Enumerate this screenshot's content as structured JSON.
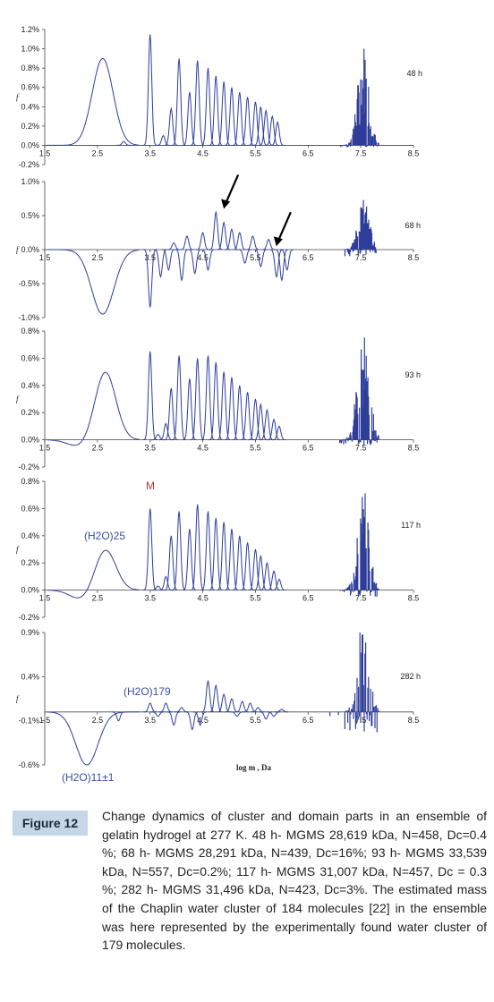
{
  "chart_data": [
    {
      "type": "line",
      "panel_label": "48 h",
      "ylabel": "f",
      "xlim": [
        1.5,
        8.5
      ],
      "ylim": [
        -0.2,
        1.2
      ],
      "x_ticks": [
        "1.5",
        "2.5",
        "3.5",
        "4.5",
        "5.5",
        "6.5",
        "7.5",
        "8.5"
      ],
      "y_ticks": [
        "-0.2%",
        "0.0%",
        "0.2%",
        "0.4%",
        "0.6%",
        "0.8%",
        "1.0%",
        "1.2%"
      ],
      "y_tick_values": [
        -0.2,
        0,
        0.2,
        0.4,
        0.6,
        0.8,
        1.0,
        1.2
      ],
      "series": [
        {
          "hump_center": 2.6,
          "hump_height": 0.9,
          "dip_center": null,
          "dip_depth": 0,
          "peaks": [
            [
              3.0,
              0.04
            ],
            [
              3.5,
              1.15
            ],
            [
              3.75,
              0.1
            ],
            [
              3.9,
              0.38
            ],
            [
              4.05,
              0.9
            ],
            [
              4.25,
              0.55
            ],
            [
              4.4,
              0.88
            ],
            [
              4.6,
              0.8
            ],
            [
              4.75,
              0.72
            ],
            [
              4.9,
              0.66
            ],
            [
              5.05,
              0.6
            ],
            [
              5.2,
              0.55
            ],
            [
              5.35,
              0.5
            ],
            [
              5.5,
              0.45
            ],
            [
              5.6,
              0.4
            ],
            [
              5.7,
              0.36
            ],
            [
              5.82,
              0.3
            ],
            [
              5.92,
              0.24
            ]
          ],
          "cluster": {
            "from": 7.1,
            "to": 7.85,
            "max": 1.0,
            "min": -0.02
          }
        }
      ]
    },
    {
      "type": "line",
      "panel_label": "68 h",
      "ylabel": "f",
      "xlim": [
        1.5,
        8.5
      ],
      "ylim": [
        -1.0,
        1.0
      ],
      "x_ticks": [
        "1.5",
        "2.5",
        "3.5",
        "4.5",
        "5.5",
        "6.5",
        "7.5",
        "8.5"
      ],
      "y_ticks": [
        "-1.0%",
        "-0.5%",
        "0.0%",
        "0.5%",
        "1.0%"
      ],
      "y_tick_values": [
        -1.0,
        -0.5,
        0,
        0.5,
        1.0
      ],
      "arrows": [
        4.9,
        6.0
      ],
      "series": [
        {
          "hump_center": null,
          "hump_height": 0,
          "dip_center": 2.6,
          "dip_depth": -0.95,
          "peaks": [
            [
              3.5,
              -0.85
            ],
            [
              3.7,
              -0.4
            ],
            [
              3.85,
              -0.3
            ],
            [
              3.95,
              0.1
            ],
            [
              4.1,
              -0.45
            ],
            [
              4.2,
              0.2
            ],
            [
              4.35,
              -0.35
            ],
            [
              4.5,
              0.25
            ],
            [
              4.6,
              -0.3
            ],
            [
              4.75,
              0.55
            ],
            [
              4.9,
              0.4
            ],
            [
              5.05,
              0.3
            ],
            [
              5.2,
              0.25
            ],
            [
              5.3,
              -0.2
            ],
            [
              5.45,
              0.2
            ],
            [
              5.6,
              -0.25
            ],
            [
              5.75,
              0.15
            ],
            [
              5.9,
              -0.4
            ],
            [
              6.0,
              -0.45
            ],
            [
              6.1,
              -0.3
            ]
          ],
          "cluster": {
            "from": 7.1,
            "to": 7.8,
            "max": 0.75,
            "min": -0.1
          }
        }
      ]
    },
    {
      "type": "line",
      "panel_label": "93 h",
      "ylabel": "f",
      "xlim": [
        1.5,
        8.5
      ],
      "ylim": [
        -0.2,
        0.8
      ],
      "x_ticks": [
        "1.5",
        "2.5",
        "3.5",
        "4.5",
        "5.5",
        "6.5",
        "7.5",
        "8.5"
      ],
      "y_ticks": [
        "-0.2%",
        "0.0%",
        "0.2%",
        "0.4%",
        "0.6%",
        "0.8%"
      ],
      "y_tick_values": [
        -0.2,
        0,
        0.2,
        0.4,
        0.6,
        0.8
      ],
      "series": [
        {
          "hump_center": 2.65,
          "hump_height": 0.5,
          "dip_center": 2.15,
          "dip_depth": -0.05,
          "peaks": [
            [
              3.5,
              0.65
            ],
            [
              3.65,
              0.04
            ],
            [
              3.8,
              0.12
            ],
            [
              3.9,
              0.38
            ],
            [
              4.05,
              0.62
            ],
            [
              4.25,
              0.45
            ],
            [
              4.4,
              0.6
            ],
            [
              4.6,
              0.62
            ],
            [
              4.75,
              0.57
            ],
            [
              4.9,
              0.5
            ],
            [
              5.05,
              0.46
            ],
            [
              5.2,
              0.4
            ],
            [
              5.35,
              0.35
            ],
            [
              5.5,
              0.3
            ],
            [
              5.6,
              0.26
            ],
            [
              5.72,
              0.22
            ],
            [
              5.85,
              0.15
            ],
            [
              5.95,
              0.1
            ]
          ],
          "cluster": {
            "from": 7.1,
            "to": 7.85,
            "max": 0.9,
            "min": -0.04
          }
        }
      ]
    },
    {
      "type": "line",
      "panel_label": "117 h",
      "ylabel": "f",
      "xlim": [
        1.5,
        8.5
      ],
      "ylim": [
        -0.2,
        0.8
      ],
      "x_ticks": [
        "1.5",
        "2.5",
        "3.5",
        "4.5",
        "5.5",
        "6.5",
        "7.5",
        "8.5"
      ],
      "y_ticks": [
        "-0.2%",
        "0.0%",
        "0.2%",
        "0.4%",
        "0.6%",
        "0.8%"
      ],
      "y_tick_values": [
        -0.2,
        0,
        0.2,
        0.4,
        0.6,
        0.8
      ],
      "series": [
        {
          "hump_center": 2.65,
          "hump_height": 0.3,
          "dip_center": 2.2,
          "dip_depth": -0.07,
          "peaks": [
            [
              3.5,
              0.6
            ],
            [
              3.65,
              0.03
            ],
            [
              3.8,
              0.1
            ],
            [
              3.9,
              0.4
            ],
            [
              4.05,
              0.58
            ],
            [
              4.25,
              0.45
            ],
            [
              4.4,
              0.63
            ],
            [
              4.6,
              0.58
            ],
            [
              4.75,
              0.53
            ],
            [
              4.9,
              0.5
            ],
            [
              5.05,
              0.45
            ],
            [
              5.2,
              0.4
            ],
            [
              5.35,
              0.35
            ],
            [
              5.5,
              0.3
            ],
            [
              5.6,
              0.25
            ],
            [
              5.72,
              0.2
            ],
            [
              5.85,
              0.14
            ],
            [
              5.95,
              0.08
            ]
          ],
          "cluster": {
            "from": 7.1,
            "to": 7.85,
            "max": 0.75,
            "min": -0.05
          }
        }
      ]
    },
    {
      "type": "line",
      "panel_label": "282 h",
      "ylabel": "f",
      "xlabel": "log m , Da",
      "xlim": [
        1.5,
        8.5
      ],
      "ylim": [
        -0.6,
        0.9
      ],
      "x_ticks": [
        "1.5",
        "2.5",
        "3.5",
        "4.5",
        "5.5",
        "6.5",
        "7.5",
        "8.5"
      ],
      "y_ticks": [
        "-0.6%",
        "-0.1%",
        "0.4%",
        "0.9%"
      ],
      "y_tick_values": [
        -0.6,
        -0.1,
        0.4,
        0.9
      ],
      "series": [
        {
          "hump_center": null,
          "hump_height": 0,
          "dip_center": 2.3,
          "dip_depth": -0.6,
          "peaks": [
            [
              2.9,
              -0.1
            ],
            [
              3.5,
              0.1
            ],
            [
              3.65,
              -0.05
            ],
            [
              3.8,
              0.1
            ],
            [
              3.95,
              -0.15
            ],
            [
              4.1,
              0.05
            ],
            [
              4.3,
              -0.2
            ],
            [
              4.45,
              -0.15
            ],
            [
              4.6,
              0.35
            ],
            [
              4.75,
              0.3
            ],
            [
              4.9,
              0.2
            ],
            [
              5.05,
              0.15
            ],
            [
              5.15,
              -0.05
            ],
            [
              5.25,
              0.12
            ],
            [
              5.4,
              0.1
            ],
            [
              5.55,
              0.05
            ],
            [
              5.7,
              -0.08
            ],
            [
              5.85,
              -0.05
            ],
            [
              6.0,
              0.03
            ]
          ],
          "cluster": {
            "from": 6.9,
            "to": 7.85,
            "max": 0.9,
            "min": -0.25
          }
        }
      ]
    }
  ],
  "annotations": {
    "m_label": "M",
    "h2o_25": "(H2O)25",
    "h2o_179": "(H2O)179",
    "h2o_11": "(H2O)11±1",
    "colors": {
      "red": "#c0392b",
      "blue": "#3b4fa0",
      "line": "#2e3d9a"
    }
  },
  "caption": {
    "figure_label": "Figure 12",
    "text": "Change dynamics of cluster and domain parts in an ensemble of gelatin hydrogel at 277 K. 48 h- MGMS 28,619 kDa, N=458, Dc=0.4 %; 68 h- MGMS 28,291 kDa, N=439, Dc=16%; 93 h- MGMS 33,539 kDa, N=557, Dc=0.2%; 117 h- MGMS 31,007 kDa, N=457, Dc = 0.3 %; 282 h- MGMS 31,496 kDa, N=423, Dc=3%. The estimated mass of the Chaplin water cluster of 184 molecules [22] in the ensemble was here represented by the experimentally found water cluster of 179 molecules."
  }
}
